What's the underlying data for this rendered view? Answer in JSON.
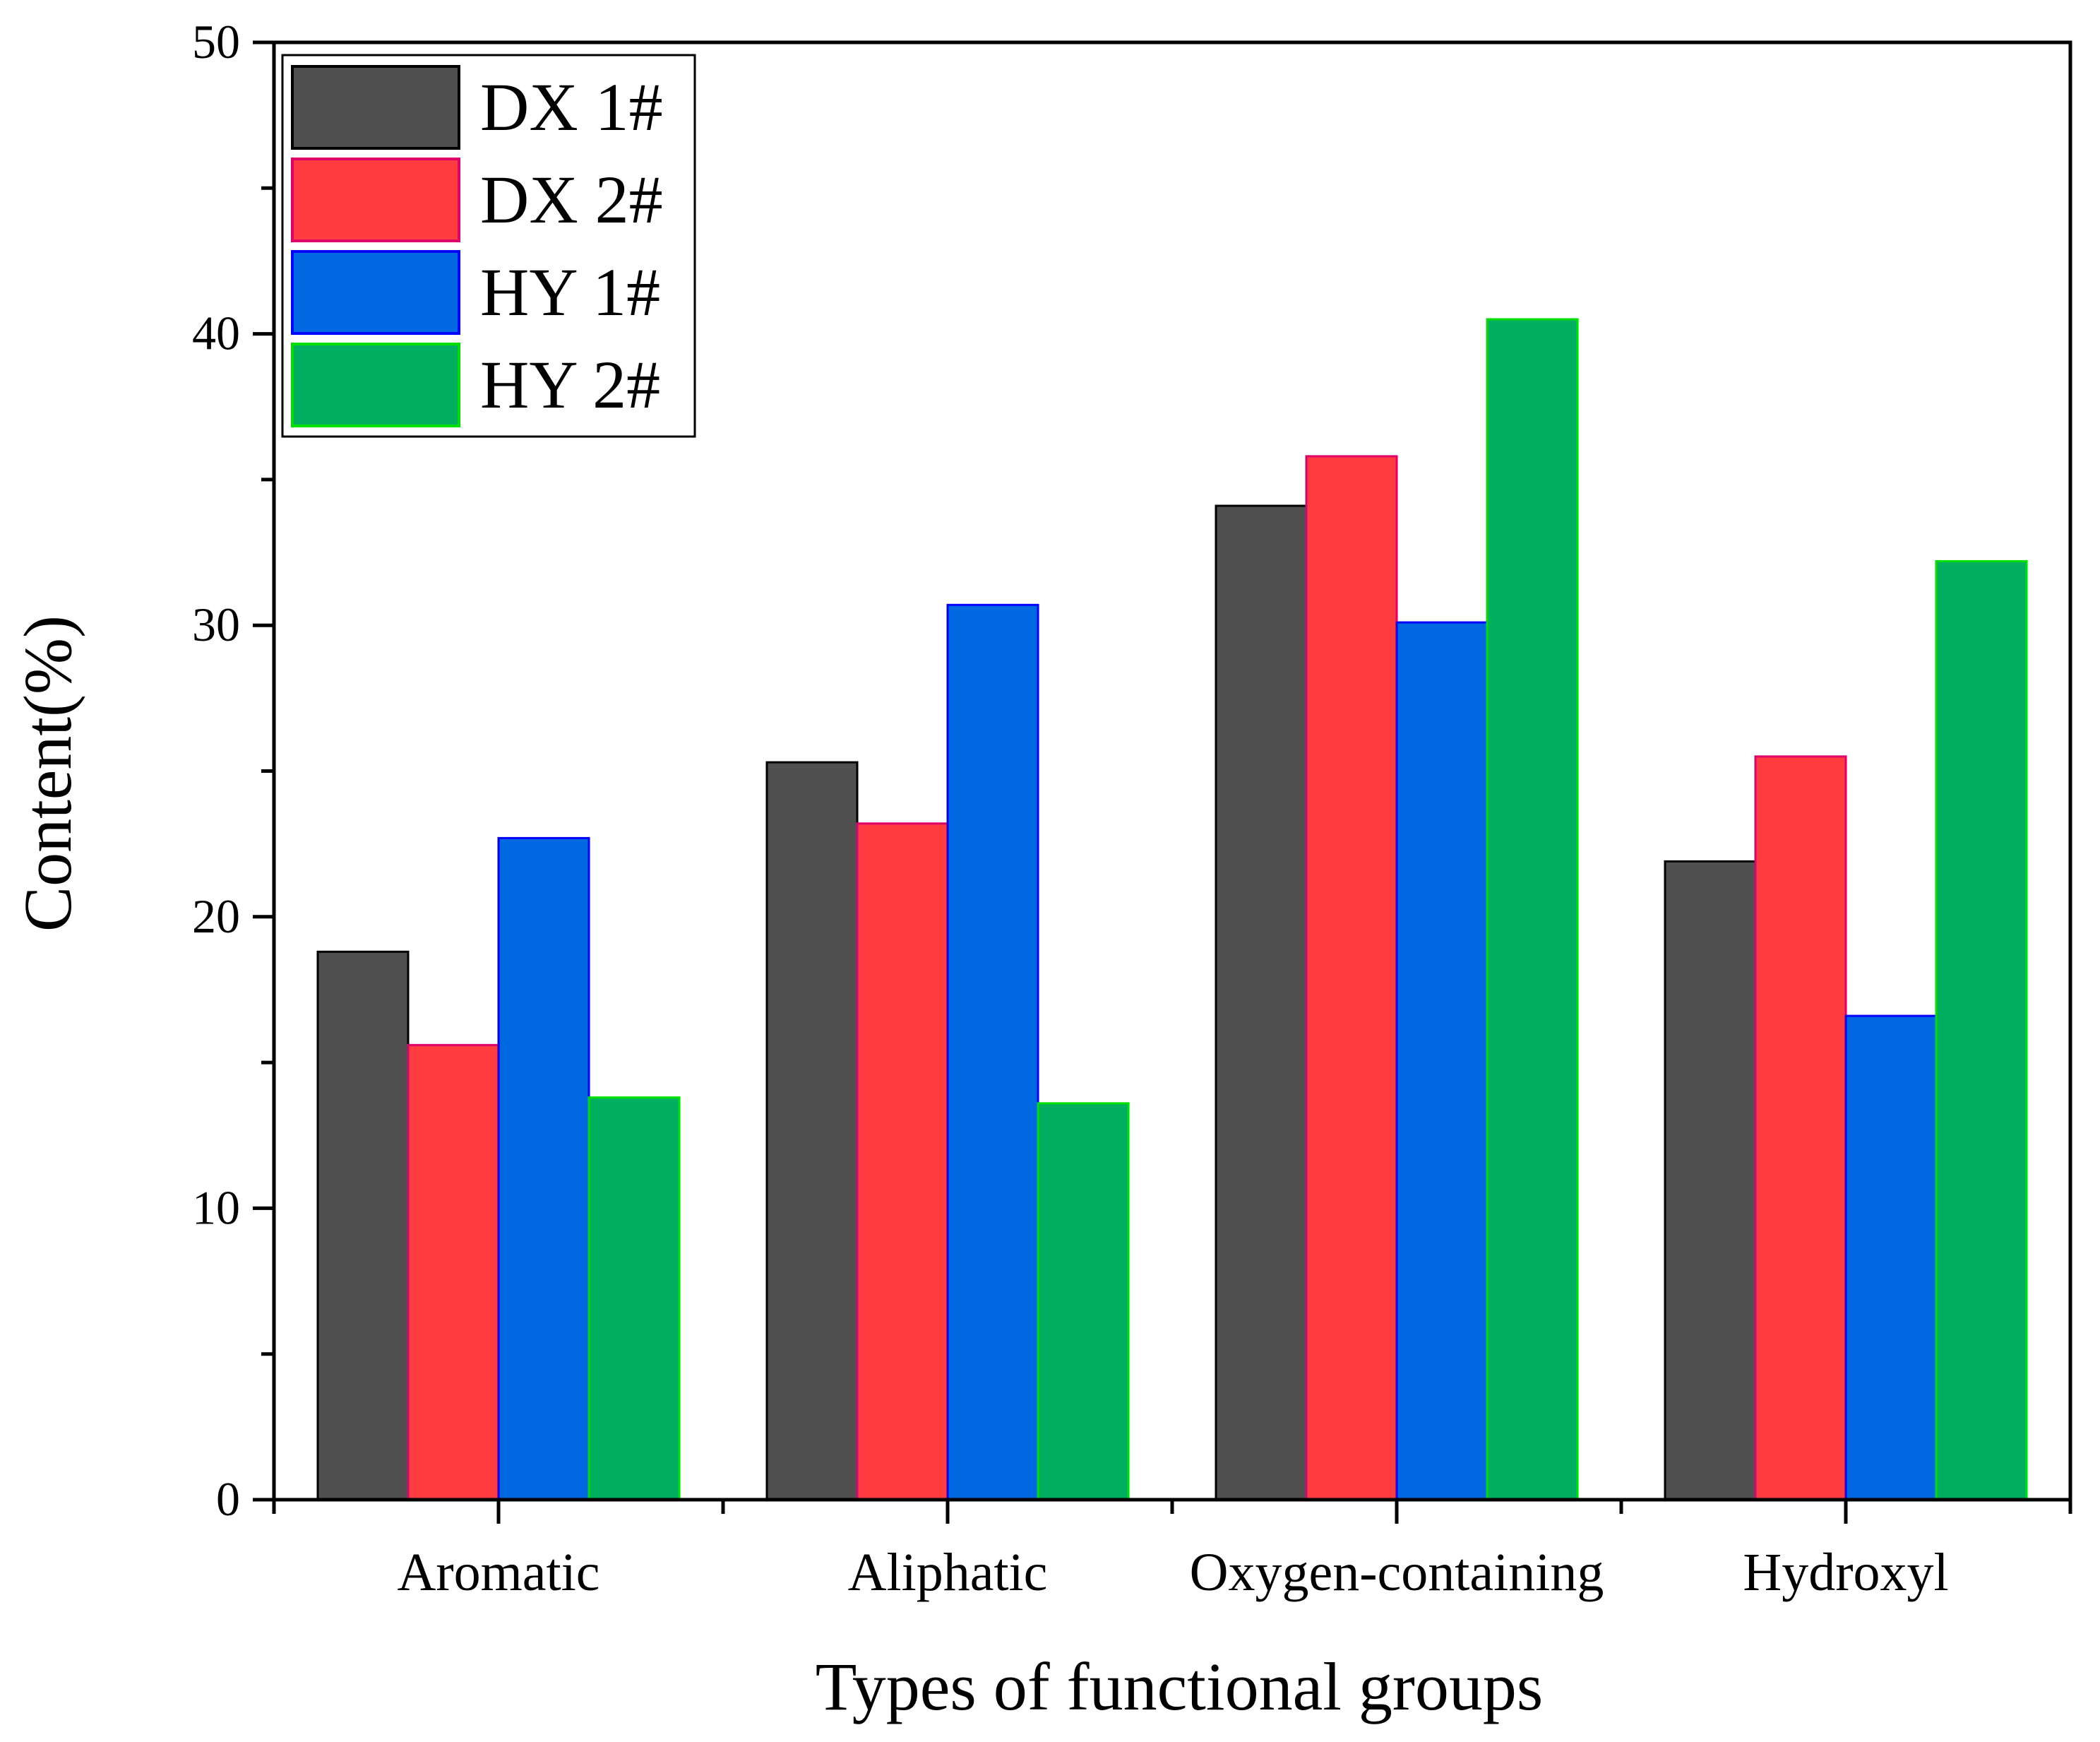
{
  "chart_data": {
    "type": "bar",
    "title": "",
    "xlabel": "Types of functional groups",
    "ylabel": "Content(%)",
    "ylim": [
      0,
      50
    ],
    "yticks": [
      0,
      10,
      20,
      30,
      40,
      50
    ],
    "categories": [
      "Aromatic",
      "Aliphatic",
      "Oxygen-containing",
      "Hydroxyl"
    ],
    "series": [
      {
        "name": "DX 1#",
        "color": "#505050",
        "edge": "#000000",
        "values": [
          18.8,
          25.3,
          34.1,
          21.9
        ]
      },
      {
        "name": "DX 2#",
        "color": "#ff3d41",
        "edge": "#e0006b",
        "values": [
          15.6,
          23.2,
          35.8,
          25.5
        ]
      },
      {
        "name": "HY 1#",
        "color": "#0068e0",
        "edge": "#0000ff",
        "values": [
          22.7,
          30.7,
          30.1,
          16.6
        ]
      },
      {
        "name": "HY 2#",
        "color": "#00b060",
        "edge": "#00e000",
        "values": [
          13.8,
          13.6,
          40.5,
          32.2
        ]
      }
    ],
    "legend": "top-left",
    "grid": false
  }
}
